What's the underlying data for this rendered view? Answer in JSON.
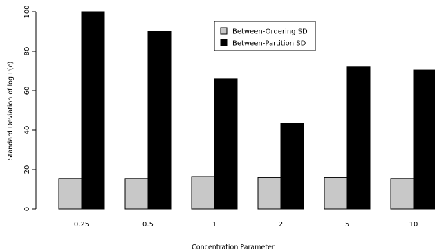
{
  "chart_data": {
    "type": "bar",
    "title": "",
    "xlabel": "Concentration Parameter",
    "ylabel": "Standard Deviation of log P(c)",
    "categories": [
      "0.25",
      "0.5",
      "1",
      "2",
      "5",
      "10"
    ],
    "ylim": [
      0,
      100
    ],
    "yticks": [
      "0",
      "20",
      "40",
      "60",
      "80",
      "100"
    ],
    "series": [
      {
        "name": "Between-Ordering SD",
        "color": "#c8c8c8",
        "values": [
          15.5,
          15.5,
          16.5,
          16,
          16,
          15.5
        ]
      },
      {
        "name": "Between-Partition SD",
        "color": "#000000",
        "values": [
          100,
          90,
          66,
          43.5,
          72,
          70.5
        ]
      }
    ],
    "grid": false,
    "legend": "top-center"
  }
}
